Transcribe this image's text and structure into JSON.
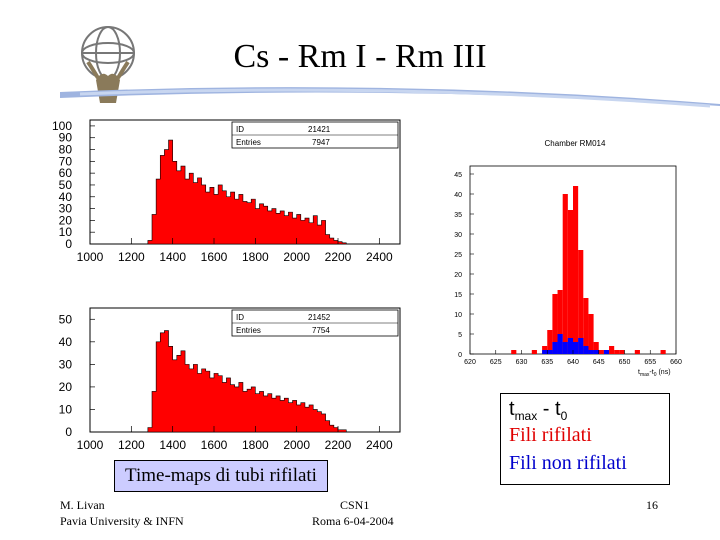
{
  "slide": {
    "title": "Cs - Rm I - Rm III",
    "caption": "Time-maps di tubi rifilati",
    "legend": {
      "tmax": "t",
      "tmax_sub": "max",
      "sep": " - t",
      "t0_sub": "0",
      "rifilati": "Fili rifilati",
      "non_rifilati": "Fili non rifilati"
    },
    "footer": {
      "author": "M. Livan",
      "affiliation": "Pavia University & INFN",
      "event": "CSN1",
      "date": "Roma 6-04-2004",
      "page": "16"
    },
    "colors": {
      "fill_red": "#ff0000",
      "fill_blue": "#0000ff",
      "caption_bg": "#ccccff"
    },
    "logo_icon": "atlas-logo-icon"
  },
  "chart_data": [
    {
      "type": "area",
      "stats": {
        "id_label": "ID",
        "id_value": "21421",
        "entries_label": "Entries",
        "entries_value": "7947"
      },
      "x_ticks": [
        "1000",
        "1200",
        "1400",
        "1600",
        "1800",
        "2000",
        "2200",
        "2400"
      ],
      "y_ticks": [
        "0",
        "10",
        "20",
        "30",
        "40",
        "50",
        "60",
        "70",
        "80",
        "90",
        "100"
      ],
      "xlim": [
        1000,
        2500
      ],
      "ylim": [
        0,
        105
      ],
      "x": [
        1280,
        1300,
        1320,
        1340,
        1360,
        1380,
        1400,
        1420,
        1440,
        1460,
        1480,
        1500,
        1520,
        1540,
        1560,
        1580,
        1600,
        1620,
        1640,
        1660,
        1680,
        1700,
        1720,
        1740,
        1760,
        1780,
        1800,
        1820,
        1840,
        1860,
        1880,
        1900,
        1920,
        1940,
        1960,
        1980,
        2000,
        2020,
        2040,
        2060,
        2080,
        2100,
        2120,
        2140,
        2160,
        2180,
        2200,
        2220,
        2240
      ],
      "values": [
        3,
        25,
        55,
        75,
        80,
        88,
        70,
        62,
        66,
        55,
        60,
        52,
        56,
        50,
        44,
        48,
        42,
        50,
        45,
        40,
        44,
        38,
        42,
        36,
        35,
        38,
        30,
        34,
        32,
        28,
        30,
        26,
        28,
        24,
        27,
        22,
        25,
        20,
        22,
        18,
        24,
        16,
        20,
        8,
        5,
        3,
        2,
        1,
        0
      ]
    },
    {
      "type": "area",
      "stats": {
        "id_label": "ID",
        "id_value": "21452",
        "entries_label": "Entries",
        "entries_value": "7754"
      },
      "x_ticks": [
        "1000",
        "1200",
        "1400",
        "1600",
        "1800",
        "2000",
        "2200",
        "2400"
      ],
      "y_ticks": [
        "0",
        "10",
        "20",
        "30",
        "40",
        "50"
      ],
      "xlim": [
        1000,
        2500
      ],
      "ylim": [
        0,
        55
      ],
      "x": [
        1280,
        1300,
        1320,
        1340,
        1360,
        1380,
        1400,
        1420,
        1440,
        1460,
        1480,
        1500,
        1520,
        1540,
        1560,
        1580,
        1600,
        1620,
        1640,
        1660,
        1680,
        1700,
        1720,
        1740,
        1760,
        1780,
        1800,
        1820,
        1840,
        1860,
        1880,
        1900,
        1920,
        1940,
        1960,
        1980,
        2000,
        2020,
        2040,
        2060,
        2080,
        2100,
        2120,
        2140,
        2160,
        2180,
        2200,
        2220,
        2240
      ],
      "values": [
        2,
        18,
        40,
        44,
        45,
        38,
        32,
        34,
        36,
        30,
        28,
        30,
        26,
        28,
        27,
        24,
        26,
        25,
        22,
        24,
        21,
        20,
        22,
        18,
        19,
        20,
        17,
        18,
        16,
        17,
        15,
        16,
        14,
        15,
        13,
        14,
        12,
        13,
        11,
        12,
        10,
        9,
        8,
        5,
        3,
        2,
        1,
        1,
        0
      ]
    },
    {
      "type": "bar",
      "title": "Chamber RM014",
      "xlabel": "t",
      "xlabel_sub": "max",
      "xlabel_rest": "-t",
      "xlabel_sub2": "0",
      "xlabel_unit": "(ns)",
      "x_ticks": [
        "620",
        "625",
        "630",
        "635",
        "640",
        "645",
        "650",
        "655",
        "660"
      ],
      "y_ticks": [
        "0",
        "5",
        "10",
        "15",
        "20",
        "25",
        "30",
        "35",
        "40",
        "45"
      ],
      "xlim": [
        620,
        660
      ],
      "ylim": [
        0,
        47
      ],
      "bin_width": 1,
      "x": [
        628,
        632,
        634,
        635,
        636,
        637,
        638,
        639,
        640,
        641,
        642,
        643,
        644,
        645,
        646,
        647,
        648,
        649,
        652,
        657
      ],
      "series": [
        {
          "name": "Fili rifilati",
          "color": "#ff0000",
          "values": [
            1,
            1,
            2,
            6,
            15,
            16,
            40,
            36,
            42,
            26,
            14,
            10,
            3,
            1,
            1,
            2,
            1,
            1,
            1,
            1
          ]
        },
        {
          "name": "Fili non rifilati",
          "color": "#0000ff",
          "values": [
            0,
            0,
            1,
            1,
            3,
            5,
            3,
            4,
            3,
            4,
            2,
            1,
            1,
            0,
            1,
            0,
            0,
            0,
            0,
            0
          ]
        }
      ]
    }
  ]
}
